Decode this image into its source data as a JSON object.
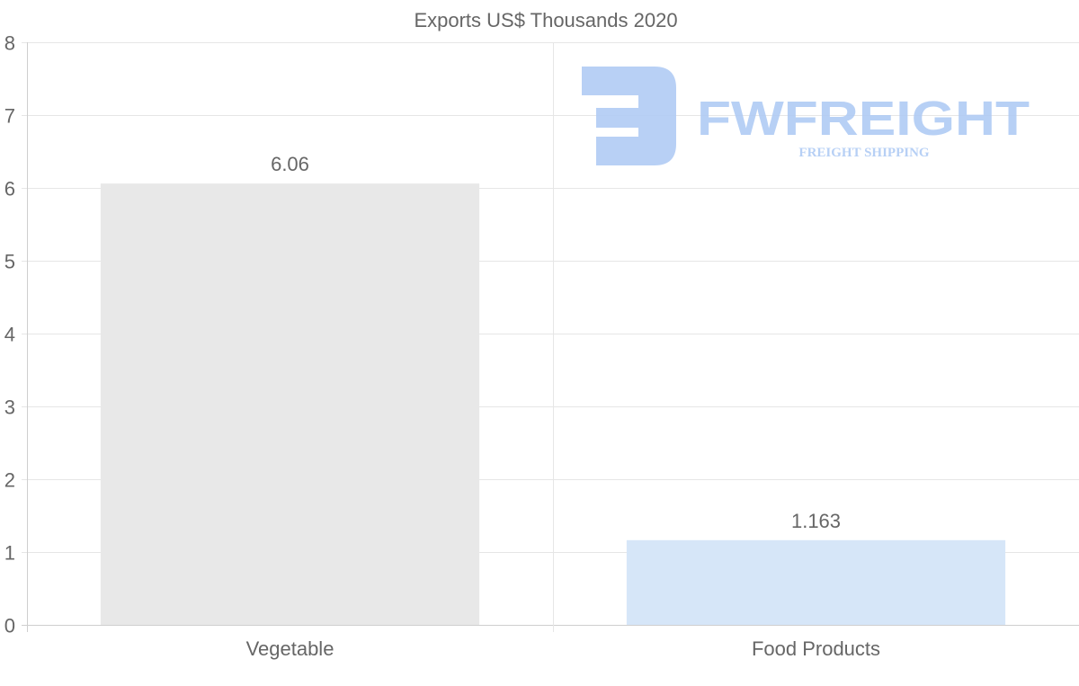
{
  "chart_data": {
    "type": "bar",
    "title": "Exports US$ Thousands 2020",
    "categories": [
      "Vegetable",
      "Food Products"
    ],
    "values": [
      6.06,
      1.163
    ],
    "value_labels": [
      "6.06",
      "1.163"
    ],
    "bar_colors": [
      "#e8e8e8",
      "#d6e6f8"
    ],
    "xlabel": "",
    "ylabel": "",
    "ylim": [
      0,
      8
    ],
    "yticks": [
      0,
      1,
      2,
      3,
      4,
      5,
      6,
      7,
      8
    ],
    "grid": true,
    "legend": "none"
  },
  "watermark": {
    "brand": "FWFREIGHT",
    "tagline": "FREIGHT SHIPPING",
    "color": "#a9c6f3"
  }
}
